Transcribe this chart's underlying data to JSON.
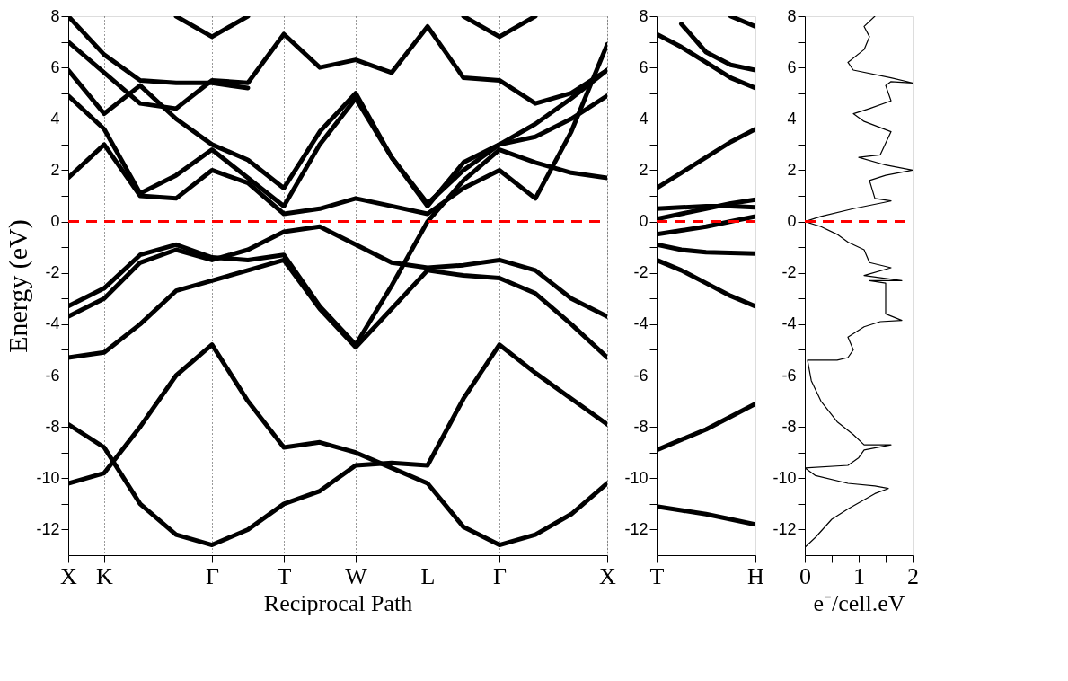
{
  "chart_data": [
    {
      "type": "line",
      "xlabel": "Reciprocal Path",
      "ylabel": "Energy (eV)",
      "ylim": [
        -13,
        8
      ],
      "grid": "x",
      "line_style": "solid",
      "categories": [
        "X",
        "K",
        null,
        null,
        "Γ",
        null,
        "T",
        null,
        "W",
        null,
        "L",
        null,
        "Γ",
        null,
        null,
        "X"
      ],
      "yticks": [
        -12,
        {
          "value": -11,
          "label": null
        },
        -10,
        {
          "value": -9,
          "label": null
        },
        -8,
        {
          "value": -7,
          "label": null
        },
        -6,
        {
          "value": -5,
          "label": null
        },
        -4,
        {
          "value": -3,
          "label": null
        },
        -2,
        {
          "value": -1,
          "label": null
        },
        0,
        {
          "value": 1,
          "label": null
        },
        2,
        {
          "value": 3,
          "label": null
        },
        4,
        {
          "value": 5,
          "label": null
        },
        6,
        {
          "value": 7,
          "label": null
        },
        8
      ],
      "ref_lines": [
        {
          "axis": "y",
          "value": 0,
          "color": "#ff0000",
          "line_style": "dashed"
        }
      ],
      "series": [
        {
          "color": "#000000",
          "values": [
            -7.9,
            -8.8,
            -11.0,
            -12.2,
            -12.6,
            -12.0,
            -11.0,
            -10.5,
            -9.5,
            -9.4,
            -9.5,
            -6.9,
            -4.8,
            -5.9,
            -6.9,
            -7.9
          ]
        },
        {
          "color": "#000000",
          "values": [
            -10.2,
            -9.8,
            -8.0,
            -6.0,
            -4.8,
            -7.0,
            -8.8,
            -8.6,
            -9.0,
            -9.6,
            -10.2,
            -11.9,
            -12.6,
            -12.2,
            -11.4,
            -10.2
          ]
        },
        {
          "color": "#000000",
          "values": [
            -5.3,
            -5.1,
            -4.0,
            -2.7,
            -2.3,
            -1.9,
            -1.5,
            -3.4,
            -4.9,
            -3.4,
            -1.9,
            -2.1,
            -2.2,
            -2.8,
            -4.0,
            -5.3
          ]
        },
        {
          "color": "#000000",
          "values": [
            -3.7,
            -3.0,
            -1.6,
            -1.1,
            -1.5,
            -1.1,
            -0.4,
            -0.2,
            -0.9,
            -1.6,
            -1.8,
            -1.7,
            -1.5,
            -1.9,
            -3.0,
            -3.7
          ]
        },
        {
          "color": "#000000",
          "values": [
            -3.3,
            -2.6,
            -1.3,
            -0.9,
            -1.4,
            -1.5,
            -1.3,
            -3.3,
            -4.8,
            -2.5,
            0.0,
            1.6,
            2.8,
            2.3,
            1.9,
            1.7
          ]
        },
        {
          "color": "#000000",
          "values": [
            1.7,
            3.0,
            1.0,
            0.9,
            2.0,
            1.5,
            0.3,
            0.5,
            0.9,
            0.6,
            0.3,
            1.3,
            2.0,
            0.9,
            3.5,
            6.9
          ]
        },
        {
          "color": "#000000",
          "values": [
            4.9,
            3.6,
            1.1,
            1.8,
            2.8,
            1.7,
            0.6,
            3.0,
            4.8,
            2.5,
            0.7,
            2.0,
            3.0,
            3.3,
            4.0,
            4.9
          ]
        },
        {
          "color": "#000000",
          "values": [
            5.9,
            4.2,
            5.3,
            4.0,
            3.0,
            2.4,
            1.3,
            3.5,
            5.0,
            2.5,
            0.6,
            2.3,
            3.0,
            3.8,
            4.8,
            5.9
          ]
        },
        {
          "color": "#000000",
          "values": [
            7.0,
            5.8,
            4.6,
            4.4,
            5.5,
            5.4,
            7.3,
            6.0,
            6.3,
            5.8,
            7.6,
            5.6,
            5.5,
            4.6,
            5.0,
            5.9
          ]
        },
        {
          "color": "#000000",
          "values": [
            8.0,
            6.5,
            5.5,
            5.4,
            5.4,
            5.2,
            null,
            null,
            null,
            null,
            null,
            null,
            null,
            null,
            null,
            null
          ]
        },
        {
          "color": "#000000",
          "values": [
            null,
            null,
            null,
            8.0,
            7.2,
            8.0,
            null,
            null,
            null,
            null,
            null,
            null,
            null,
            null,
            null,
            null
          ]
        },
        {
          "color": "#000000",
          "values": [
            null,
            null,
            null,
            null,
            null,
            null,
            null,
            null,
            null,
            null,
            null,
            8.0,
            7.2,
            8.0,
            null,
            null
          ]
        }
      ]
    },
    {
      "type": "line",
      "ylim": [
        -13,
        8
      ],
      "line_style": "solid",
      "categories": [
        "T",
        null,
        null,
        null,
        "H"
      ],
      "yticks": [
        -12,
        {
          "value": -11,
          "label": null
        },
        -10,
        {
          "value": -9,
          "label": null
        },
        -8,
        {
          "value": -7,
          "label": null
        },
        -6,
        {
          "value": -5,
          "label": null
        },
        -4,
        {
          "value": -3,
          "label": null
        },
        -2,
        {
          "value": -1,
          "label": null
        },
        0,
        {
          "value": 1,
          "label": null
        },
        2,
        {
          "value": 3,
          "label": null
        },
        4,
        {
          "value": 5,
          "label": null
        },
        6,
        {
          "value": 7,
          "label": null
        },
        8
      ],
      "ref_lines": [
        {
          "axis": "y",
          "value": 0,
          "color": "#ff0000",
          "line_style": "dashed"
        }
      ],
      "series": [
        {
          "color": "#000000",
          "values": [
            -11.1,
            -11.25,
            -11.4,
            -11.6,
            -11.8
          ]
        },
        {
          "color": "#000000",
          "values": [
            -8.9,
            -8.5,
            -8.1,
            -7.6,
            -7.1
          ]
        },
        {
          "color": "#000000",
          "values": [
            -1.5,
            -1.9,
            -2.4,
            -2.9,
            -3.3
          ]
        },
        {
          "color": "#000000",
          "values": [
            -0.9,
            -1.1,
            -1.2,
            -1.22,
            -1.25
          ]
        },
        {
          "color": "#000000",
          "values": [
            -0.5,
            -0.35,
            -0.2,
            0.0,
            0.2
          ]
        },
        {
          "color": "#000000",
          "values": [
            0.1,
            0.3,
            0.5,
            0.7,
            0.85
          ]
        },
        {
          "color": "#000000",
          "values": [
            0.5,
            0.55,
            0.6,
            0.6,
            0.55
          ]
        },
        {
          "color": "#000000",
          "values": [
            1.3,
            1.9,
            2.5,
            3.1,
            3.6
          ]
        },
        {
          "color": "#000000",
          "values": [
            7.3,
            6.8,
            6.2,
            5.6,
            5.2
          ]
        },
        {
          "color": "#000000",
          "values": [
            null,
            7.7,
            6.6,
            6.1,
            5.9
          ]
        },
        {
          "color": "#000000",
          "values": [
            null,
            null,
            null,
            8.0,
            7.6
          ]
        }
      ]
    },
    {
      "type": "line",
      "xlabel": "e⁻/cell.eV",
      "xlim": [
        0,
        2
      ],
      "ylim": [
        -13,
        8
      ],
      "line_style": "solid",
      "xticks": [
        0,
        {
          "value": 0.5,
          "label": null
        },
        1,
        {
          "value": 1.5,
          "label": null
        },
        2
      ],
      "yticks": [
        -12,
        {
          "value": -11,
          "label": null
        },
        -10,
        {
          "value": -9,
          "label": null
        },
        -8,
        {
          "value": -7,
          "label": null
        },
        -6,
        {
          "value": -5,
          "label": null
        },
        -4,
        {
          "value": -3,
          "label": null
        },
        -2,
        {
          "value": -1,
          "label": null
        },
        0,
        {
          "value": 1,
          "label": null
        },
        2,
        {
          "value": 3,
          "label": null
        },
        4,
        {
          "value": 5,
          "label": null
        },
        6,
        {
          "value": 7,
          "label": null
        },
        8
      ],
      "ref_lines": [
        {
          "axis": "y",
          "value": 0,
          "color": "#ff0000",
          "line_style": "dashed"
        }
      ],
      "series": [
        {
          "color": "#000000",
          "x": [
            0,
            0.2,
            0.5,
            0.8,
            1.05,
            1.3,
            1.55,
            1.3,
            0.8,
            0.2,
            0,
            0.8,
            1.0,
            1.1,
            1.6,
            1.1,
            0.9,
            0.6,
            0.3,
            0.12,
            0.05,
            0.6,
            0.8,
            0.9,
            0.8,
            1.1,
            1.4,
            1.8,
            1.5,
            1.5,
            1.5,
            1.2,
            1.8,
            1.1,
            1.6,
            1.2,
            1.1,
            0.8,
            0.6,
            0.3,
            0,
            0.3,
            0.9,
            1.6,
            1.3,
            1.2,
            1.5,
            2.0,
            1.5,
            1.0,
            1.4,
            1.6,
            1.1,
            0.9,
            1.2,
            1.6,
            1.5,
            1.6,
            2.0,
            1.6,
            0.9,
            0.8,
            1.1,
            1.2,
            1.1,
            1.3
          ],
          "values": [
            -12.7,
            -12.3,
            -11.6,
            -11.2,
            -10.9,
            -10.6,
            -10.4,
            -10.3,
            -10.2,
            -9.9,
            -9.6,
            -9.5,
            -9.2,
            -8.9,
            -8.7,
            -8.7,
            -8.3,
            -7.8,
            -7.0,
            -6.2,
            -5.4,
            -5.4,
            -5.3,
            -5.0,
            -4.5,
            -4.1,
            -3.9,
            -3.85,
            -3.6,
            -3.0,
            -2.4,
            -2.3,
            -2.3,
            -2.1,
            -1.8,
            -1.6,
            -1.1,
            -0.8,
            -0.5,
            -0.2,
            0.0,
            0.2,
            0.5,
            0.8,
            0.9,
            1.6,
            1.8,
            2.0,
            2.2,
            2.5,
            2.6,
            3.5,
            3.9,
            4.2,
            4.4,
            4.7,
            5.3,
            5.45,
            5.4,
            5.6,
            5.9,
            6.2,
            6.7,
            7.2,
            7.6,
            8.0
          ]
        }
      ]
    }
  ]
}
